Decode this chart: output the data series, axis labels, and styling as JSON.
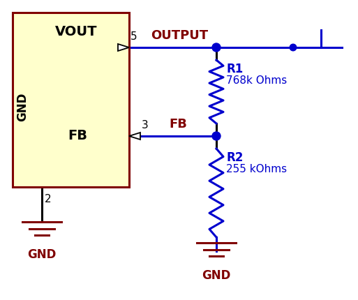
{
  "bg_color": "#ffffff",
  "dark_red": "#800000",
  "blue": "#0000cd",
  "black": "#000000",
  "chip_fill": "#ffffcc",
  "chip_border": "#800000",
  "vout_label": "VOUT",
  "fb_label": "FB",
  "gnd_label_chip": "GND",
  "output_label": "OUTPUT",
  "fb_net_label": "FB",
  "pin5_label": "5",
  "pin3_label": "3",
  "pin2_label": "2",
  "r1_label": "R1",
  "r1_val": "768k Ohms",
  "r2_label": "R2",
  "r2_val": "255 kOhms",
  "gnd_label1": "GND",
  "gnd_label2": "GND",
  "figw": 5.13,
  "figh": 4.3,
  "dpi": 100
}
